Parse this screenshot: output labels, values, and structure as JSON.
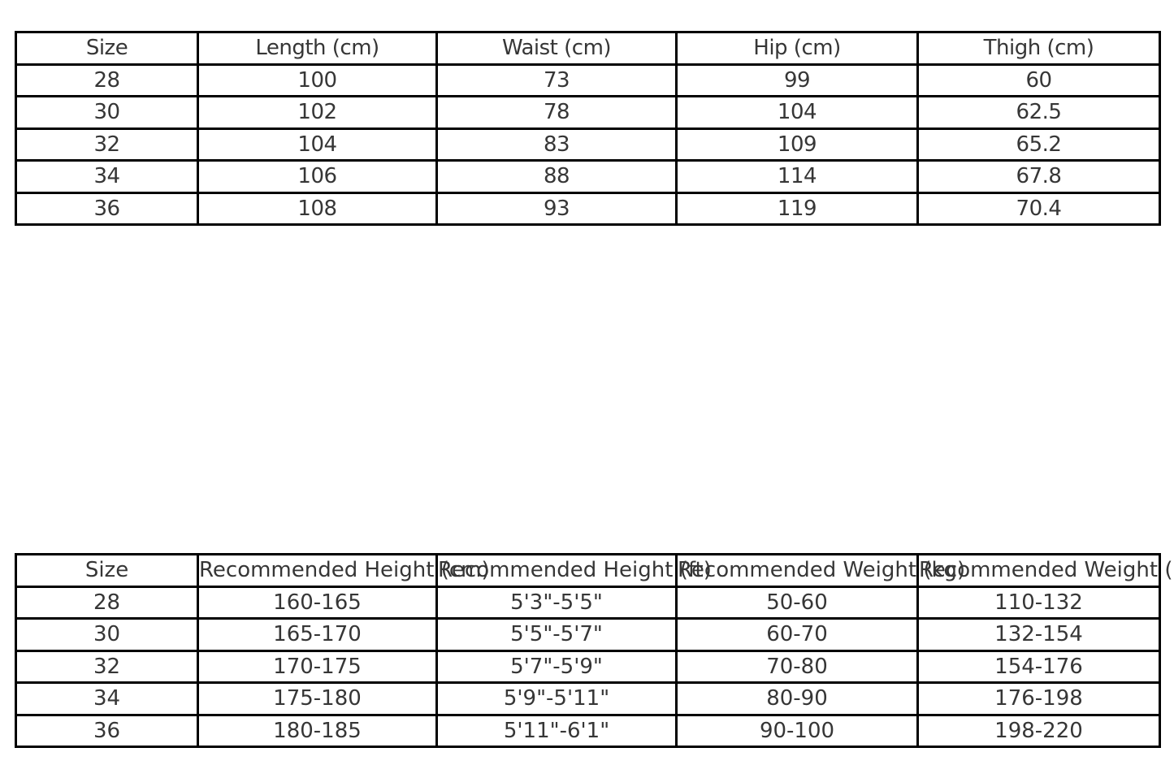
{
  "colors": {
    "background": "#ffffff",
    "border": "#000000",
    "text": "#363636"
  },
  "chart_data": [
    {
      "type": "table",
      "name": "size-measurements",
      "headers": [
        "Size",
        "Length (cm)",
        "Waist (cm)",
        "Hip (cm)",
        "Thigh (cm)"
      ],
      "rows": [
        [
          "28",
          "100",
          "73",
          "99",
          "60"
        ],
        [
          "30",
          "102",
          "78",
          "104",
          "62.5"
        ],
        [
          "32",
          "104",
          "83",
          "109",
          "65.2"
        ],
        [
          "34",
          "106",
          "88",
          "114",
          "67.8"
        ],
        [
          "36",
          "108",
          "93",
          "119",
          "70.4"
        ]
      ]
    },
    {
      "type": "table",
      "name": "fit-recommendations",
      "headers": [
        "Size",
        "Recommended Height (cm)",
        "Recommended Height (ft)",
        "Recommended Weight (kg)",
        "Recommended Weight (lbs)"
      ],
      "rows": [
        [
          "28",
          "160-165",
          "5'3\"-5'5\"",
          "50-60",
          "110-132"
        ],
        [
          "30",
          "165-170",
          "5'5\"-5'7\"",
          "60-70",
          "132-154"
        ],
        [
          "32",
          "170-175",
          "5'7\"-5'9\"",
          "70-80",
          "154-176"
        ],
        [
          "34",
          "175-180",
          "5'9\"-5'11\"",
          "80-90",
          "176-198"
        ],
        [
          "36",
          "180-185",
          "5'11\"-6'1\"",
          "90-100",
          "198-220"
        ]
      ]
    }
  ]
}
